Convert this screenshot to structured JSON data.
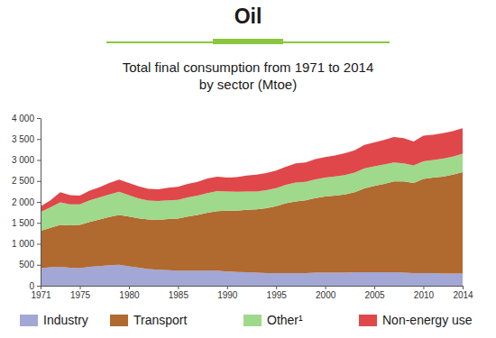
{
  "chart_data": {
    "type": "area",
    "stacked": true,
    "title": "Oil",
    "subtitle": [
      "Total final consumption from 1971 to 2014",
      "by sector (Mtoe)"
    ],
    "x": [
      1971,
      1972,
      1973,
      1974,
      1975,
      1976,
      1977,
      1978,
      1979,
      1980,
      1981,
      1982,
      1983,
      1984,
      1985,
      1986,
      1987,
      1988,
      1989,
      1990,
      1991,
      1992,
      1993,
      1994,
      1995,
      1996,
      1997,
      1998,
      1999,
      2000,
      2001,
      2002,
      2003,
      2004,
      2005,
      2006,
      2007,
      2008,
      2009,
      2010,
      2011,
      2012,
      2013,
      2014
    ],
    "xlim": [
      1971,
      2014
    ],
    "xticks": [
      1971,
      1975,
      1980,
      1985,
      1990,
      1995,
      2000,
      2005,
      2010,
      2014
    ],
    "ylim": [
      0,
      4000
    ],
    "yticks": [
      0,
      500,
      {
        "value": 1000,
        "label": "1 000"
      },
      {
        "value": 1500,
        "label": "1 500"
      },
      {
        "value": 2000,
        "label": "2 000"
      },
      {
        "value": 2500,
        "label": "2 500"
      },
      {
        "value": 3000,
        "label": "3 000"
      },
      {
        "value": 3500,
        "label": "3 500"
      },
      {
        "value": 4000,
        "label": "4 000"
      }
    ],
    "grid": false,
    "legend": "bottom",
    "series": [
      {
        "name": "Industry",
        "color": "#a3a7d6",
        "values": [
          420,
          440,
          450,
          430,
          420,
          450,
          470,
          490,
          500,
          460,
          430,
          400,
          380,
          370,
          360,
          360,
          360,
          360,
          360,
          340,
          330,
          320,
          310,
          300,
          300,
          300,
          300,
          300,
          310,
          310,
          310,
          310,
          320,
          320,
          320,
          320,
          320,
          310,
          300,
          300,
          300,
          290,
          290,
          290
        ]
      },
      {
        "name": "Transport",
        "color": "#b0692f",
        "values": [
          890,
          940,
          1000,
          1010,
          1030,
          1070,
          1110,
          1150,
          1190,
          1190,
          1180,
          1180,
          1190,
          1220,
          1240,
          1290,
          1330,
          1380,
          1420,
          1450,
          1460,
          1490,
          1510,
          1550,
          1600,
          1670,
          1710,
          1740,
          1780,
          1820,
          1840,
          1870,
          1910,
          2000,
          2060,
          2110,
          2170,
          2180,
          2150,
          2250,
          2280,
          2310,
          2360,
          2420
        ]
      },
      {
        "name": "Other¹",
        "color": "#9fd98c",
        "values": [
          450,
          490,
          540,
          500,
          490,
          520,
          530,
          540,
          550,
          510,
          470,
          450,
          450,
          450,
          450,
          460,
          460,
          470,
          480,
          460,
          450,
          440,
          430,
          430,
          430,
          440,
          450,
          440,
          450,
          450,
          460,
          460,
          470,
          480,
          470,
          460,
          450,
          430,
          420,
          420,
          420,
          430,
          430,
          440
        ]
      },
      {
        "name": "Non-energy use",
        "color": "#e0474a",
        "values": [
          130,
          170,
          240,
          220,
          210,
          230,
          240,
          270,
          290,
          290,
          290,
          280,
          280,
          300,
          310,
          320,
          330,
          350,
          340,
          330,
          350,
          380,
          400,
          410,
          420,
          430,
          460,
          460,
          480,
          490,
          500,
          520,
          530,
          560,
          570,
          590,
          610,
          600,
          570,
          610,
          600,
          610,
          610,
          610
        ]
      }
    ]
  }
}
